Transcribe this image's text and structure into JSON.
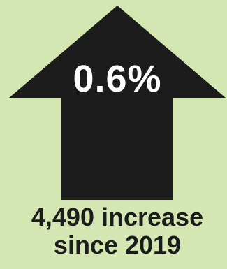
{
  "infographic": {
    "value": "0.6%",
    "caption_line_1": "4,490 increase",
    "caption_line_2": "since 2019"
  },
  "icon": "up-arrow-icon",
  "colors": {
    "background": "#d4e6b2",
    "arrow": "#1c1c1c",
    "value_text": "#ffffff",
    "caption_text": "#1c1c1c"
  }
}
